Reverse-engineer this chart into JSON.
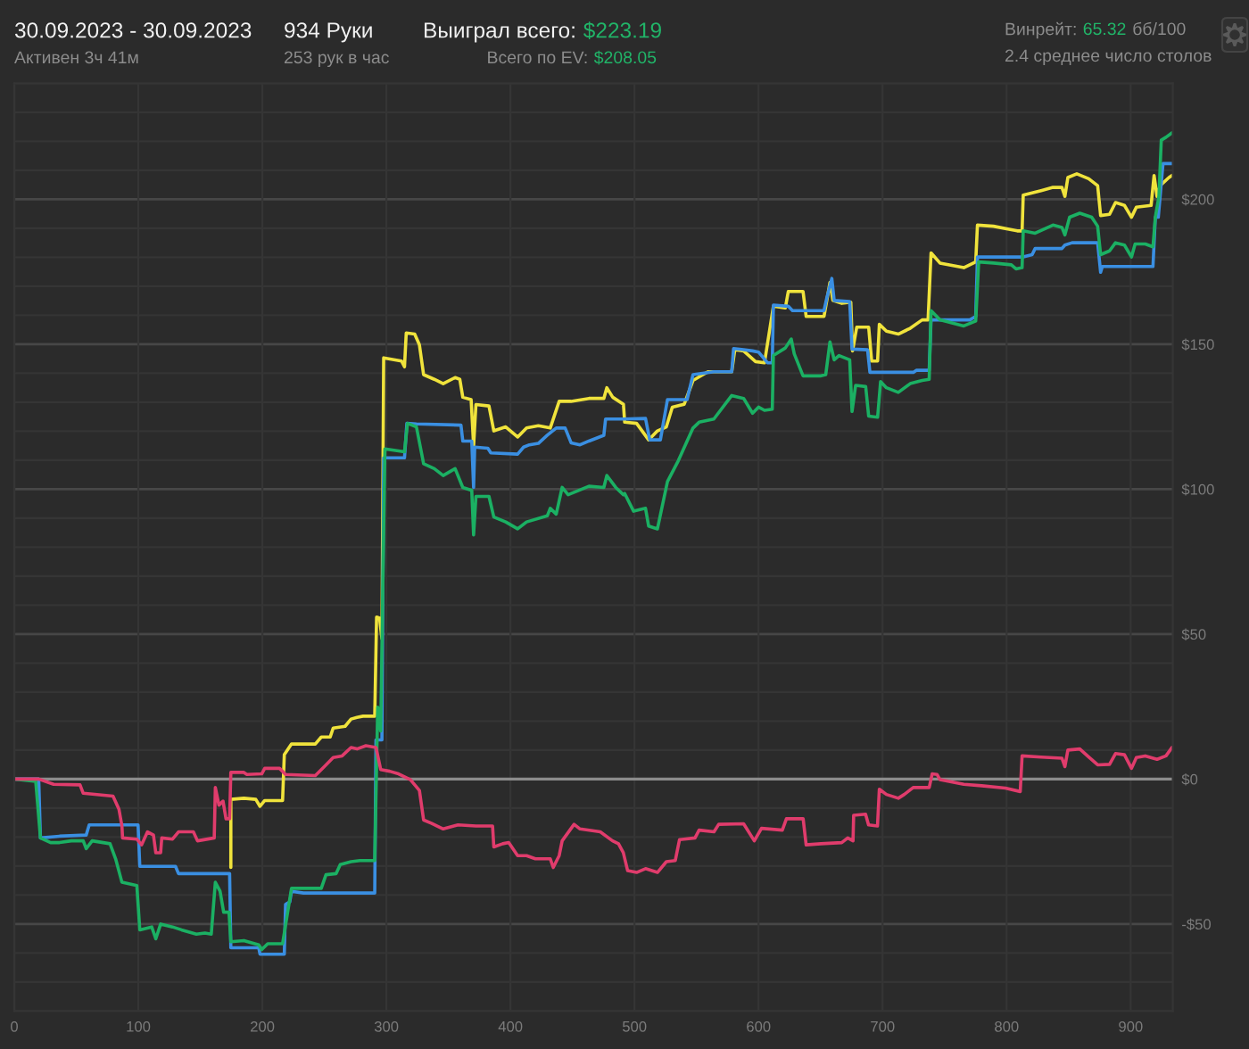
{
  "chart_data": {
    "type": "line",
    "title": "30.09.2023 - 30.09.2023",
    "subtitle": "Активен 3ч 41м",
    "annotations": [
      "934 Руки",
      "253 рук в час",
      "Выиграл всего:",
      "$223.19",
      "Всего по EV:",
      "$208.05",
      "Винрейт:",
      "65.32",
      "бб/100",
      "2.4 среднее число столов"
    ],
    "xlim": [
      0,
      934
    ],
    "xticks": [
      0,
      100,
      200,
      300,
      400,
      500,
      600,
      700,
      800,
      900
    ],
    "ylim": [
      -80,
      240
    ],
    "yticks": [
      {
        "value": -80,
        "label": null
      },
      {
        "value": -70,
        "label": null
      },
      {
        "value": -60,
        "label": null
      },
      {
        "value": -50,
        "label": "-$50"
      },
      {
        "value": -40,
        "label": null
      },
      {
        "value": -30,
        "label": null
      },
      {
        "value": -20,
        "label": null
      },
      {
        "value": -10,
        "label": null
      },
      {
        "value": 0,
        "label": "$0"
      },
      {
        "value": 10,
        "label": null
      },
      {
        "value": 20,
        "label": null
      },
      {
        "value": 30,
        "label": null
      },
      {
        "value": 40,
        "label": null
      },
      {
        "value": 50,
        "label": "$50"
      },
      {
        "value": 60,
        "label": null
      },
      {
        "value": 70,
        "label": null
      },
      {
        "value": 80,
        "label": null
      },
      {
        "value": 90,
        "label": null
      },
      {
        "value": 100,
        "label": "$100"
      },
      {
        "value": 110,
        "label": null
      },
      {
        "value": 120,
        "label": null
      },
      {
        "value": 130,
        "label": null
      },
      {
        "value": 140,
        "label": null
      },
      {
        "value": 150,
        "label": "$150"
      },
      {
        "value": 160,
        "label": null
      },
      {
        "value": 170,
        "label": null
      },
      {
        "value": 180,
        "label": null
      },
      {
        "value": 190,
        "label": null
      },
      {
        "value": 200,
        "label": "$200"
      },
      {
        "value": 210,
        "label": null
      },
      {
        "value": 220,
        "label": null
      },
      {
        "value": 230,
        "label": null
      },
      {
        "value": 240,
        "label": null
      }
    ],
    "grid": true,
    "ref_lines": [
      {
        "axis": "y",
        "value": 0,
        "color": "#8c8c8c"
      }
    ],
    "series": [
      {
        "color": "#f0e33c",
        "x": [
          174.6,
          174.6,
          185.1,
          194.7,
          198.1,
          201.9,
          216.3,
          217.7,
          223.5,
          242.7,
          247.5,
          254.7,
          257.1,
          266.7,
          271.5,
          276.3,
          281.1,
          290.6,
          292.1,
          294.5,
          296.4,
          297.8,
          312.2,
          314.6,
          316,
          322.8,
          326.6,
          330,
          338.6,
          345.8,
          355.4,
          359.2,
          361.6,
          368.3,
          370.3,
          372.2,
          382.7,
          386.6,
          396.2,
          405.8,
          413,
          422.5,
          432.1,
          439.3,
          448.9,
          463.3,
          475.3,
          477.7,
          482.5,
          491.1,
          492.1,
          501.7,
          511.4,
          518.5,
          525.7,
          530.5,
          540.1,
          547.2,
          559.2,
          578.4,
          580.9,
          588,
          597.6,
          604.8,
          612,
          621.6,
          624,
          635.9,
          638.4,
          652.8,
          657.6,
          660,
          667.2,
          674.4,
          675.8,
          679.2,
          688.8,
          691.2,
          696,
          697.4,
          703.1,
          712.7,
          722.3,
          731.9,
          736.7,
          739.1,
          746.3,
          765.5,
          775.1,
          776.5,
          789.4,
          808.6,
          812.5,
          813.4,
          827.8,
          837.4,
          844.6,
          847,
          849.4,
          856.6,
          866.2,
          873.4,
          875.8,
          883,
          887.8,
          895,
          900.7,
          904.6,
          916.5,
          918.9,
          921.3,
          923.7,
          930.9,
          933.3
        ],
        "values": [
          -30.5,
          -7.0,
          -6.6,
          -7.0,
          -9.4,
          -7.4,
          -7.4,
          8.4,
          12.1,
          12.1,
          14.5,
          14.5,
          17.6,
          18.2,
          20.7,
          21.3,
          21.7,
          21.7,
          55.9,
          55.5,
          48.4,
          145.3,
          144.2,
          142.2,
          153.9,
          153.5,
          149.8,
          139.5,
          137.9,
          136.4,
          138.5,
          137.9,
          131.7,
          130.9,
          114.9,
          129.2,
          128.7,
          120.1,
          121.5,
          118.0,
          121.1,
          121.9,
          121.1,
          130.3,
          130.3,
          131.3,
          131.3,
          135.0,
          131.7,
          129.3,
          123.1,
          122.7,
          117.0,
          120.1,
          121.5,
          128.3,
          129.3,
          137.5,
          140.5,
          140.5,
          148.1,
          147.7,
          144.0,
          143.6,
          163.1,
          162.5,
          168.2,
          168.2,
          159.6,
          159.6,
          171.3,
          165.1,
          164.1,
          164.5,
          147.7,
          155.9,
          155.9,
          144.2,
          144.2,
          156.9,
          154.5,
          153.5,
          155.5,
          158.4,
          158.4,
          181.5,
          178.0,
          176.4,
          178.4,
          191.1,
          190.7,
          189.1,
          189.1,
          201.4,
          203.0,
          204.1,
          204.1,
          201.0,
          207.5,
          208.8,
          207.1,
          204.7,
          194.4,
          194.8,
          198.9,
          197.9,
          193.8,
          197.3,
          197.9,
          208.2,
          201.0,
          204.7,
          207.5,
          208.2
        ]
      },
      {
        "color": "#3a8fe2",
        "x": [
          0,
          19.7,
          21.1,
          36.5,
          58,
          60.4,
          99.8,
          101.2,
          130,
          132.4,
          173.6,
          174.6,
          197.1,
          198.1,
          217.7,
          218.7,
          222.1,
          223.5,
          233.1,
          290.6,
          291.6,
          296.4,
          297.8,
          314.6,
          316.5,
          324.2,
          360.1,
          361.6,
          368.8,
          370.3,
          371.2,
          381.8,
          384.2,
          405.8,
          410.6,
          415.3,
          422.5,
          429.7,
          436.9,
          444.1,
          448.9,
          456.1,
          463.3,
          475.3,
          476.7,
          491.1,
          508.9,
          512.3,
          520.9,
          526.6,
          542.4,
          547.2,
          564,
          578.4,
          579.9,
          588,
          595.2,
          600,
          607.2,
          611.1,
          612,
          624,
          627.4,
          652.8,
          655.2,
          659.1,
          661,
          673.5,
          675.4,
          687.9,
          689.8,
          724.8,
          727.2,
          737.6,
          739.1,
          770.3,
          775.1,
          776.5,
          813.4,
          820.6,
          823,
          844.6,
          847,
          852.8,
          873.4,
          875.8,
          877.2,
          918,
          919.9,
          922.3,
          923.7,
          926.1,
          933.3
        ],
        "values": [
          0,
          0,
          -20.3,
          -19.7,
          -19.3,
          -15.8,
          -15.8,
          -30.1,
          -30.1,
          -32.6,
          -32.6,
          -58.2,
          -58.2,
          -60.4,
          -60.4,
          -43.2,
          -42.4,
          -38.7,
          -39.3,
          -39.3,
          13.5,
          13.5,
          110.8,
          110.8,
          122.7,
          122.5,
          122.1,
          116.6,
          116.6,
          100.6,
          114.5,
          114.1,
          112.5,
          112.1,
          114.5,
          115.3,
          115.8,
          118.6,
          121.1,
          121.1,
          116.0,
          115.3,
          116.6,
          118.6,
          124.2,
          124.2,
          124.4,
          117.0,
          117.0,
          130.9,
          130.9,
          139.5,
          140.5,
          140.5,
          148.5,
          148.1,
          147.7,
          147.3,
          143.6,
          143.6,
          163.5,
          163.1,
          161.6,
          161.6,
          166.2,
          172.7,
          165.1,
          164.7,
          148.3,
          148.1,
          140.3,
          140.3,
          141.0,
          141.0,
          158.4,
          158.4,
          159.6,
          180.1,
          180.1,
          180.9,
          183.0,
          183.0,
          184.2,
          185.0,
          185.0,
          174.8,
          176.8,
          176.8,
          193.8,
          193.8,
          200.6,
          212.3,
          212.3
        ]
      },
      {
        "color": "#1bb063",
        "x": [
          0,
          17.3,
          21.1,
          29.3,
          36.5,
          46,
          55.6,
          58,
          62.8,
          77.2,
          81.7,
          86.8,
          98.8,
          101.2,
          110.8,
          114.1,
          118,
          127.6,
          134.8,
          146.8,
          153.7,
          158.8,
          162.1,
          165.9,
          168.8,
          173.1,
          174.6,
          185.1,
          197.1,
          199.5,
          204.3,
          216.3,
          223.5,
          247.5,
          251.3,
          259.5,
          262.8,
          271.5,
          278.7,
          290.6,
          293,
          295.4,
          298.8,
          314.6,
          317,
          324.2,
          330,
          338.6,
          345.8,
          355.4,
          361.6,
          368.8,
          370.3,
          372.2,
          382.7,
          386.6,
          396.2,
          405.8,
          413,
          429.7,
          432.1,
          436.9,
          441.7,
          446.5,
          463.3,
          475.3,
          477.7,
          484.9,
          491.1,
          492.1,
          499.3,
          508.9,
          511.4,
          518.5,
          526.6,
          535.3,
          547.2,
          552.1,
          564,
          578.4,
          588,
          595.2,
          600,
          604.8,
          611.1,
          612,
          621.6,
          626.4,
          628.8,
          635.9,
          650.4,
          654.2,
          657.6,
          661,
          664.9,
          673.5,
          675.4,
          678.3,
          686.4,
          688.8,
          696,
          698.4,
          703.1,
          712.7,
          722.3,
          731.9,
          737.6,
          739.1,
          746.3,
          765.5,
          775.1,
          777.5,
          789.4,
          803.8,
          807.6,
          812.5,
          813.4,
          823,
          837.4,
          844.6,
          847,
          850.8,
          859,
          868.6,
          873.4,
          875.8,
          883,
          887.8,
          895,
          900.7,
          903.6,
          911.8,
          918,
          919.9,
          922.8,
          924.7,
          928.5,
          933.3
        ],
        "values": [
          0,
          -0.8,
          -20.3,
          -21.9,
          -21.9,
          -21.3,
          -21.3,
          -24.0,
          -21.3,
          -22.3,
          -27.5,
          -35.6,
          -36.7,
          -52.0,
          -51.0,
          -55.1,
          -50.0,
          -51.0,
          -52.0,
          -53.5,
          -53.1,
          -53.5,
          -35.6,
          -38.7,
          -45.9,
          -45.9,
          -56.1,
          -55.7,
          -57.2,
          -58.8,
          -56.8,
          -56.8,
          -37.7,
          -37.7,
          -33.0,
          -32.6,
          -29.5,
          -28.5,
          -28.1,
          -28.1,
          24.8,
          16.6,
          113.9,
          112.9,
          122.7,
          121.5,
          108.8,
          107.1,
          104.7,
          107.1,
          100.6,
          99.6,
          84.2,
          97.5,
          97.5,
          90.4,
          88.7,
          86.3,
          88.7,
          90.8,
          93.4,
          91.4,
          100.6,
          98.1,
          101.0,
          100.6,
          104.7,
          100.6,
          98.1,
          98.5,
          92.4,
          93.4,
          87.3,
          86.3,
          102.6,
          109.8,
          121.1,
          123.1,
          124.2,
          132.3,
          131.3,
          126.2,
          128.3,
          127.2,
          127.6,
          146.1,
          148.7,
          151.8,
          146.7,
          139.1,
          139.1,
          139.5,
          150.8,
          144.6,
          146.1,
          144.6,
          126.8,
          135.8,
          135.4,
          125.2,
          124.8,
          137.1,
          135.0,
          133.4,
          136.4,
          137.5,
          137.9,
          161.6,
          158.4,
          156.3,
          158.0,
          178.4,
          178.0,
          177.4,
          176.0,
          176.4,
          189.1,
          188.3,
          191.1,
          190.3,
          187.7,
          193.8,
          195.2,
          193.8,
          190.7,
          180.9,
          182.2,
          185.0,
          184.2,
          180.1,
          184.6,
          184.6,
          183.6,
          193.8,
          201.0,
          220.4,
          221.4,
          222.9
        ]
      },
      {
        "color": "#e03c6c",
        "x": [
          0,
          19.7,
          31.7,
          53,
          55.6,
          79.6,
          84.4,
          86.8,
          87.3,
          98.8,
          102.6,
          107.4,
          112.2,
          114.1,
          118,
          118.9,
          127.6,
          132.4,
          144.4,
          147.7,
          161.2,
          162.1,
          165,
          168.3,
          170.7,
          173.6,
          174.6,
          185.1,
          187.5,
          199.5,
          201.9,
          213.9,
          218.7,
          242.7,
          249.9,
          257.1,
          264.3,
          271.5,
          276.3,
          283.5,
          291.6,
          295.4,
          302.6,
          309.8,
          319.4,
          326.6,
          330,
          336.2,
          345.8,
          357.8,
          372.2,
          385.6,
          386.6,
          393.8,
          398.6,
          405.8,
          413,
          420.1,
          432.1,
          434.5,
          439.3,
          441.7,
          451.3,
          456.1,
          472.4,
          482.3,
          487.1,
          491,
          494.5,
          501.7,
          508.9,
          518.5,
          525.7,
          532.9,
          536.3,
          548.8,
          552.1,
          564.1,
          567.9,
          588,
          596.6,
          602.4,
          619.2,
          622.5,
          636,
          638.4,
          650.4,
          667.1,
          671.9,
          676.2,
          676.7,
          686.3,
          688.7,
          695.9,
          697.4,
          703.1,
          712.7,
          717.5,
          724.7,
          737.6,
          740,
          743.9,
          746.3,
          765.5,
          779.9,
          799,
          811,
          812.5,
          827.8,
          844.6,
          847,
          849.4,
          859,
          866.2,
          873.4,
          883,
          887.8,
          895,
          900.7,
          904.6,
          911.8,
          921.3,
          928.5,
          933.3
        ],
        "values": [
          0,
          0,
          -1.8,
          -2.0,
          -4.9,
          -5.9,
          -10.4,
          -16.2,
          -20.3,
          -20.7,
          -22.7,
          -18.2,
          -19.3,
          -25.4,
          -25.4,
          -20.3,
          -20.7,
          -18.2,
          -18.2,
          -21.3,
          -20.3,
          -2.9,
          -9.0,
          -7.6,
          -13.7,
          -13.7,
          2.3,
          2.3,
          1.6,
          1.8,
          3.7,
          3.7,
          1.6,
          1.2,
          4.3,
          7.4,
          8.0,
          10.9,
          10.4,
          11.5,
          10.9,
          3.3,
          2.7,
          1.8,
          -0.2,
          -3.9,
          -14.1,
          -15.2,
          -17.2,
          -15.8,
          -16.2,
          -16.2,
          -23.4,
          -22.3,
          -21.9,
          -26.4,
          -26.4,
          -27.5,
          -27.5,
          -30.5,
          -26.4,
          -21.3,
          -15.6,
          -17.2,
          -18.2,
          -21.3,
          -22.3,
          -25.4,
          -31.6,
          -32.2,
          -30.9,
          -32.2,
          -28.5,
          -28.1,
          -20.9,
          -20.3,
          -17.6,
          -18.2,
          -15.6,
          -15.4,
          -21.3,
          -17.0,
          -17.6,
          -13.7,
          -13.7,
          -22.7,
          -22.3,
          -21.9,
          -20.3,
          -21.3,
          -12.5,
          -12.1,
          -15.8,
          -16.2,
          -3.5,
          -5.3,
          -6.6,
          -5.3,
          -2.9,
          -2.9,
          1.8,
          1.6,
          -0.2,
          -1.8,
          -2.3,
          -3.1,
          -4.3,
          8.0,
          7.6,
          7.2,
          4.3,
          10.0,
          10.4,
          7.6,
          4.9,
          5.1,
          8.8,
          8.4,
          3.7,
          7.4,
          8.0,
          6.8,
          8.0,
          10.9
        ]
      }
    ]
  }
}
